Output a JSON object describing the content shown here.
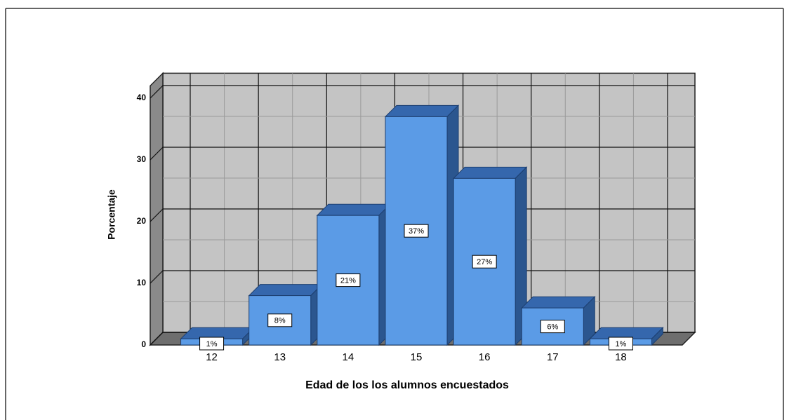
{
  "chart_data": {
    "type": "bar3d",
    "x_label": "Edad de los los alumnos encuestados",
    "y_label": "Porcentaje",
    "categories": [
      "12",
      "13",
      "14",
      "15",
      "16",
      "17",
      "18"
    ],
    "values": [
      1,
      8,
      21,
      37,
      27,
      6,
      1
    ],
    "value_labels": [
      "1%",
      "8%",
      "21%",
      "37%",
      "27%",
      "6%",
      "1%"
    ],
    "color": "#5b9be6",
    "ylim": [
      0,
      42
    ],
    "yticks": [
      0,
      10,
      20,
      30,
      40
    ],
    "grid": true
  }
}
